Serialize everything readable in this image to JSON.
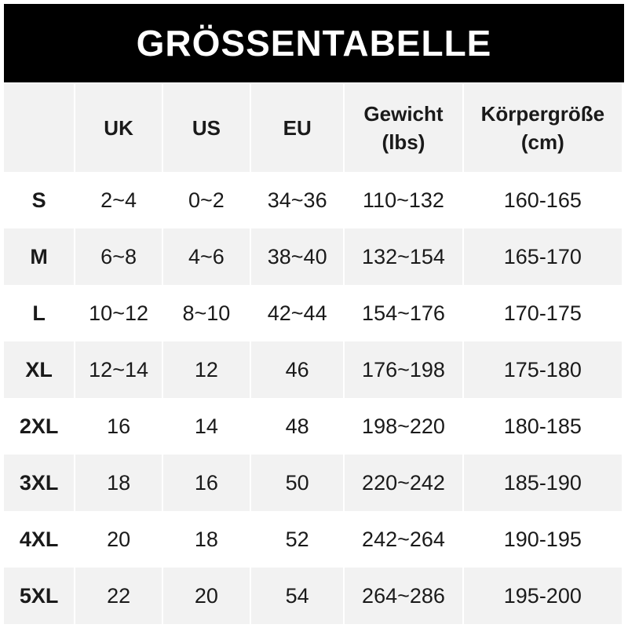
{
  "title": "GRÖSSENTABELLE",
  "headers": [
    "",
    "UK",
    "US",
    "EU",
    "Gewicht\n(lbs)",
    "Körpergröße\n(cm)"
  ],
  "rows": [
    [
      "S",
      "2~4",
      "0~2",
      "34~36",
      "110~132",
      "160-165"
    ],
    [
      "M",
      "6~8",
      "4~6",
      "38~40",
      "132~154",
      "165-170"
    ],
    [
      "L",
      "10~12",
      "8~10",
      "42~44",
      "154~176",
      "170-175"
    ],
    [
      "XL",
      "12~14",
      "12",
      "46",
      "176~198",
      "175-180"
    ],
    [
      "2XL",
      "16",
      "14",
      "48",
      "198~220",
      "180-185"
    ],
    [
      "3XL",
      "18",
      "16",
      "50",
      "220~242",
      "185-190"
    ],
    [
      "4XL",
      "20",
      "18",
      "52",
      "242~264",
      "190-195"
    ],
    [
      "5XL",
      "22",
      "20",
      "54",
      "264~286",
      "195-200"
    ]
  ]
}
